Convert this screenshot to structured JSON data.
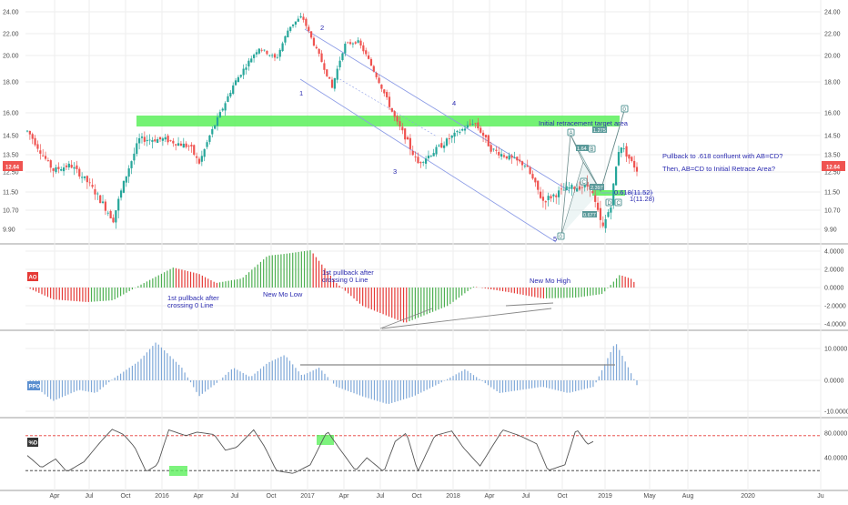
{
  "chart_data": [
    {
      "type": "candlestick",
      "panel": "price",
      "price_label": "12.64",
      "y_ticks": [
        "24.00",
        "22.00",
        "20.00",
        "18.00",
        "16.00",
        "14.50",
        "13.50",
        "12.50",
        "11.50",
        "10.70",
        "9.90"
      ],
      "x_ticks": [
        "Apr",
        "Jul",
        "Oct",
        "2016",
        "Apr",
        "Jul",
        "Oct",
        "2017",
        "Apr",
        "Jul",
        "Oct",
        "2018",
        "Apr",
        "Jul",
        "Oct",
        "2019",
        "May",
        "Aug",
        "2020",
        "Ju"
      ],
      "path": [
        [
          0.0,
          14.8
        ],
        [
          0.03,
          12.6
        ],
        [
          0.05,
          12.9
        ],
        [
          0.07,
          12.0
        ],
        [
          0.1,
          10.3
        ],
        [
          0.13,
          14.3
        ],
        [
          0.16,
          14.3
        ],
        [
          0.19,
          13.9
        ],
        [
          0.2,
          13.0
        ],
        [
          0.24,
          17.8
        ],
        [
          0.27,
          20.7
        ],
        [
          0.29,
          19.7
        ],
        [
          0.305,
          22.6
        ],
        [
          0.32,
          23.6
        ],
        [
          0.335,
          20.8
        ],
        [
          0.355,
          17.6
        ],
        [
          0.37,
          21.0
        ],
        [
          0.385,
          21.3
        ],
        [
          0.41,
          18.0
        ],
        [
          0.43,
          15.4
        ],
        [
          0.455,
          13.0
        ],
        [
          0.48,
          13.9
        ],
        [
          0.52,
          15.4
        ],
        [
          0.54,
          13.8
        ],
        [
          0.58,
          12.9
        ],
        [
          0.6,
          11.1
        ],
        [
          0.63,
          11.7
        ],
        [
          0.655,
          11.8
        ],
        [
          0.67,
          9.9
        ],
        [
          0.68,
          11.0
        ],
        [
          0.69,
          14.1
        ],
        [
          0.71,
          12.6
        ]
      ],
      "annotations": {
        "zone_label": "Initial retracement target area",
        "waves": [
          "1",
          "2",
          "3",
          "4",
          "5"
        ],
        "note1": "Pullback to .618 confluent with AB=CD?",
        "note2": "Then, AB=CD to Initial Retrace Area?",
        "fib1": "0.618(11.52)",
        "fib2": "1(11.28)",
        "patt": [
          "0",
          "A",
          "B",
          "C",
          "D",
          "X"
        ],
        "ratios": [
          "1.64",
          "1.275",
          "2.397",
          "0.677"
        ]
      }
    },
    {
      "type": "bar",
      "panel": "AO",
      "label": "AO",
      "y_ticks": [
        "4.0000",
        "2.0000",
        "0.0000",
        "-2.0000",
        "-4.0000"
      ],
      "path": [
        [
          0.0,
          0.0
        ],
        [
          0.03,
          -1.3
        ],
        [
          0.07,
          -1.6
        ],
        [
          0.1,
          -1.4
        ],
        [
          0.13,
          0.2
        ],
        [
          0.17,
          2.2
        ],
        [
          0.2,
          1.5
        ],
        [
          0.22,
          0.5
        ],
        [
          0.25,
          1.0
        ],
        [
          0.28,
          3.5
        ],
        [
          0.3,
          3.7
        ],
        [
          0.33,
          4.1
        ],
        [
          0.36,
          0.5
        ],
        [
          0.39,
          -2.0
        ],
        [
          0.44,
          -3.9
        ],
        [
          0.49,
          -2.0
        ],
        [
          0.52,
          0.1
        ],
        [
          0.56,
          -0.5
        ],
        [
          0.6,
          -1.2
        ],
        [
          0.64,
          -1.1
        ],
        [
          0.67,
          -0.7
        ],
        [
          0.69,
          1.4
        ],
        [
          0.705,
          0.9
        ],
        [
          0.71,
          0.0
        ]
      ],
      "annotations": {
        "a1": "1st pullback after",
        "a1b": "crossing 0 Line",
        "a2": "New Mo Low",
        "a3": "1st pullback after",
        "a3b": "crossing 0 Line",
        "a4": "New Mo High"
      }
    },
    {
      "type": "bar",
      "panel": "PPO",
      "label": "PPO",
      "y_ticks": [
        "10.0000",
        "0.0000",
        "-10.0000"
      ],
      "path": [
        [
          0.0,
          0.0
        ],
        [
          0.03,
          -6.5
        ],
        [
          0.06,
          -3.0
        ],
        [
          0.08,
          -4.0
        ],
        [
          0.1,
          0.5
        ],
        [
          0.13,
          6.0
        ],
        [
          0.15,
          12.0
        ],
        [
          0.18,
          4.0
        ],
        [
          0.2,
          -5.0
        ],
        [
          0.22,
          -1.0
        ],
        [
          0.24,
          4.0
        ],
        [
          0.26,
          1.0
        ],
        [
          0.28,
          5.5
        ],
        [
          0.3,
          8.0
        ],
        [
          0.32,
          1.5
        ],
        [
          0.34,
          4.0
        ],
        [
          0.36,
          -2.0
        ],
        [
          0.39,
          -5.0
        ],
        [
          0.42,
          -7.5
        ],
        [
          0.45,
          -5.0
        ],
        [
          0.48,
          -1.0
        ],
        [
          0.51,
          3.5
        ],
        [
          0.55,
          -4.0
        ],
        [
          0.6,
          -2.0
        ],
        [
          0.63,
          -4.0
        ],
        [
          0.66,
          -2.0
        ],
        [
          0.685,
          12.0
        ],
        [
          0.7,
          4.0
        ],
        [
          0.71,
          -1.5
        ]
      ]
    },
    {
      "type": "line",
      "panel": "stochastic",
      "label": "%D",
      "y_ticks": [
        "80.0000",
        "40.0000"
      ],
      "levels": [
        80,
        20
      ],
      "path": [
        [
          0.0,
          46
        ],
        [
          0.025,
          25
        ],
        [
          0.05,
          40
        ],
        [
          0.07,
          18
        ],
        [
          0.1,
          35
        ],
        [
          0.13,
          70
        ],
        [
          0.15,
          91
        ],
        [
          0.17,
          82
        ],
        [
          0.19,
          60
        ],
        [
          0.21,
          18
        ],
        [
          0.23,
          30
        ],
        [
          0.25,
          90
        ],
        [
          0.28,
          80
        ],
        [
          0.3,
          86
        ],
        [
          0.33,
          82
        ],
        [
          0.35,
          55
        ],
        [
          0.37,
          60
        ],
        [
          0.4,
          90
        ],
        [
          0.42,
          60
        ],
        [
          0.44,
          20
        ],
        [
          0.47,
          15
        ],
        [
          0.5,
          30
        ],
        [
          0.53,
          88
        ],
        [
          0.55,
          60
        ],
        [
          0.58,
          20
        ],
        [
          0.6,
          42
        ],
        [
          0.63,
          18
        ],
        [
          0.65,
          70
        ],
        [
          0.67,
          85
        ],
        [
          0.69,
          18
        ],
        [
          0.72,
          80
        ],
        [
          0.75,
          88
        ],
        [
          0.77,
          60
        ],
        [
          0.8,
          28
        ],
        [
          0.84,
          90
        ],
        [
          0.87,
          80
        ],
        [
          0.9,
          66
        ],
        [
          0.92,
          20
        ],
        [
          0.95,
          30
        ],
        [
          0.97,
          92
        ],
        [
          0.99,
          65
        ],
        [
          1.0,
          70
        ]
      ]
    }
  ],
  "colors": {
    "up": "#26a69a",
    "down": "#ef5350",
    "zone": "#5cf05c",
    "channel": "#8c9ce6",
    "ppo_bar": "#7fa8d8",
    "price_tag": "#ef5350",
    "ao_tag": "#e53935",
    "ppo_tag": "#5b8fd0",
    "stoch_tag": "#333333"
  }
}
